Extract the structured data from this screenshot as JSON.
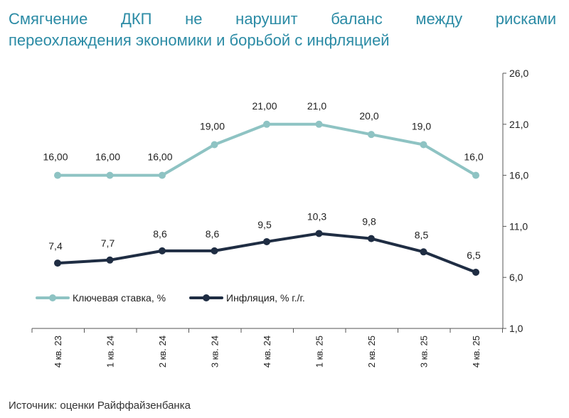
{
  "title_line1": "Смягчение ДКП не нарушит баланс между рисками",
  "title_line2": "переохлаждения экономики и борьбой с инфляцией",
  "source": "Источник: оценки Райффайзенбанка",
  "colors": {
    "key_rate": "#8ec3c3",
    "inflation": "#1f2d43",
    "title": "#2b8ba5",
    "axis": "#555555"
  },
  "chart_data": {
    "type": "line",
    "categories": [
      "4 кв. 23",
      "1 кв. 24",
      "2 кв. 24",
      "3 кв. 24",
      "4 кв. 24",
      "1 кв. 25",
      "2 кв. 25",
      "3 кв. 25",
      "4 кв. 25"
    ],
    "y_axis": {
      "position": "right",
      "min": 1.0,
      "max": 26.0,
      "ticks": [
        "1,0",
        "6,0",
        "11,0",
        "16,0",
        "21,0",
        "26,0"
      ],
      "tick_values": [
        1,
        6,
        11,
        16,
        21,
        26
      ]
    },
    "series": [
      {
        "name": "Ключевая ставка, %",
        "color": "#8ec3c3",
        "values": [
          16,
          16,
          16,
          19,
          21,
          21,
          20,
          19,
          16
        ],
        "labels": [
          "16,00",
          "16,00",
          "16,00",
          "19,00",
          "21,00",
          "21,0",
          "20,0",
          "19,0",
          "16,0"
        ]
      },
      {
        "name": "Инфляция, % г./г.",
        "color": "#1f2d43",
        "values": [
          7.4,
          7.7,
          8.6,
          8.6,
          9.5,
          10.3,
          9.8,
          8.5,
          6.5
        ],
        "labels": [
          "7,4",
          "7,7",
          "8,6",
          "8,6",
          "9,5",
          "10,3",
          "9,8",
          "8,5",
          "6,5"
        ]
      }
    ],
    "legend": "left, inside plot"
  }
}
